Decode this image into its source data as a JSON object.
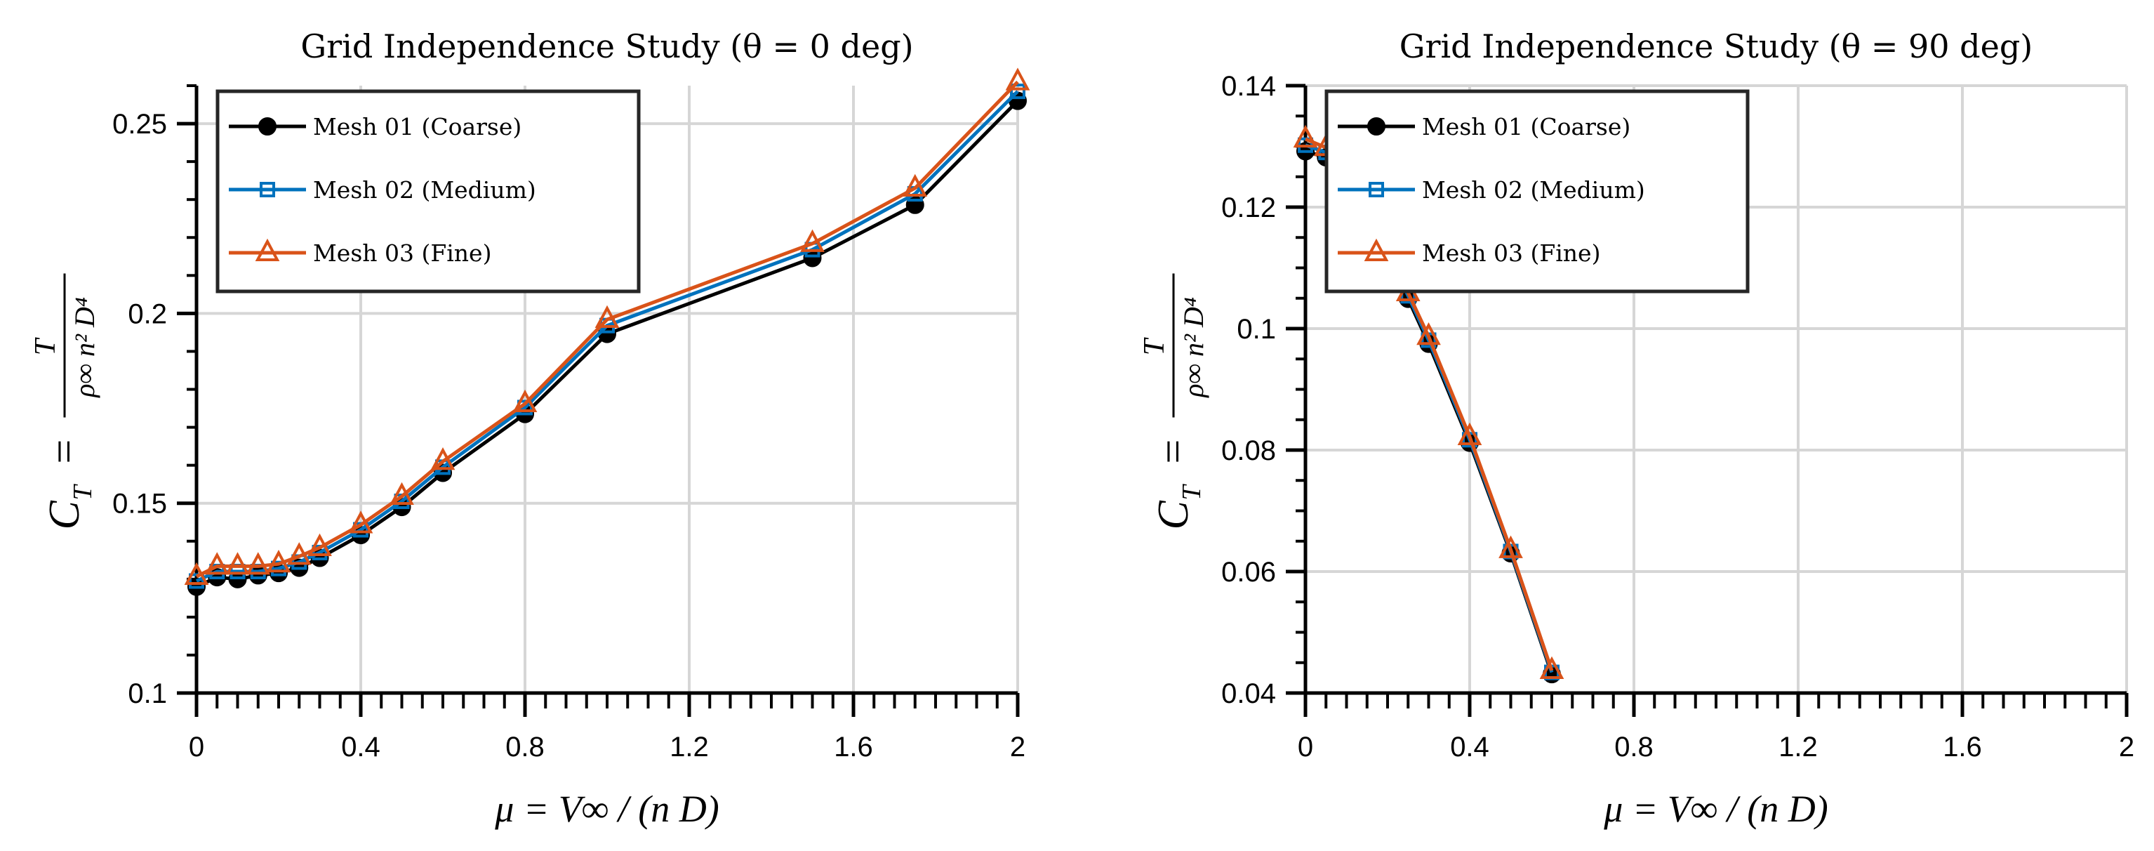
{
  "chart_data": [
    {
      "type": "line",
      "title": "Grid Independence Study (θ = 0 deg)",
      "xlabel": "μ = V∞ / (n D)",
      "ylabel": "C_T = T / (ρ∞ n² D⁴)",
      "xlabel_parts": {
        "lhs": "μ =",
        "num": "V∞",
        "den": "n D"
      },
      "ylabel_parts": {
        "lhs": "C",
        "sub": "T",
        "eq": "=",
        "num": "T",
        "den": "ρ∞ n² D⁴"
      },
      "xlim": [
        0,
        2
      ],
      "ylim": [
        0.1,
        0.26
      ],
      "xticks": [
        0,
        0.4,
        0.8,
        1.2,
        1.6,
        2
      ],
      "xtick_labels": [
        "0",
        "0.4",
        "0.8",
        "1.2",
        "1.6",
        "2"
      ],
      "yticks": [
        0.1,
        0.15,
        0.2,
        0.25
      ],
      "ytick_labels": [
        "0.1",
        "0.15",
        "0.2",
        "0.25"
      ],
      "xminor": 0.05,
      "yminor": 0.01,
      "grid": true,
      "legend_position": "top-left",
      "x": [
        0,
        0.05,
        0.1,
        0.15,
        0.2,
        0.25,
        0.3,
        0.4,
        0.5,
        0.6,
        0.8,
        1.0,
        1.5,
        1.75,
        2.0
      ],
      "series": [
        {
          "name": "Mesh 01 (Coarse)",
          "color": "#000000",
          "marker": "circle",
          "values": [
            0.128,
            0.1305,
            0.13,
            0.131,
            0.1316,
            0.133,
            0.1356,
            0.1416,
            0.149,
            0.158,
            0.1735,
            0.1946,
            0.2146,
            0.2286,
            0.256
          ]
        },
        {
          "name": "Mesh 02 (Medium)",
          "color": "#0072BD",
          "marker": "square",
          "values": [
            0.1295,
            0.132,
            0.132,
            0.132,
            0.1328,
            0.1345,
            0.137,
            0.143,
            0.1505,
            0.1595,
            0.1752,
            0.1968,
            0.2168,
            0.2315,
            0.2585
          ]
        },
        {
          "name": "Mesh 03 (Fine)",
          "color": "#D95319",
          "marker": "triangle",
          "values": [
            0.1307,
            0.1334,
            0.1334,
            0.1334,
            0.134,
            0.136,
            0.1383,
            0.1443,
            0.1518,
            0.161,
            0.1762,
            0.1984,
            0.2184,
            0.233,
            0.261
          ]
        }
      ]
    },
    {
      "type": "line",
      "title": "Grid Independence Study (θ = 90 deg)",
      "xlabel": "μ = V∞ / (n D)",
      "ylabel": "C_T = T / (ρ∞ n² D⁴)",
      "xlabel_parts": {
        "lhs": "μ =",
        "num": "V∞",
        "den": "n D"
      },
      "ylabel_parts": {
        "lhs": "C",
        "sub": "T",
        "eq": "=",
        "num": "T",
        "den": "ρ∞ n² D⁴"
      },
      "xlim": [
        0,
        2
      ],
      "ylim": [
        0.04,
        0.14
      ],
      "xticks": [
        0,
        0.4,
        0.8,
        1.2,
        1.6,
        2
      ],
      "xtick_labels": [
        "0",
        "0.4",
        "0.8",
        "1.2",
        "1.6",
        "2"
      ],
      "yticks": [
        0.04,
        0.06,
        0.08,
        0.1,
        0.12,
        0.14
      ],
      "ytick_labels": [
        "0.04",
        "0.06",
        "0.08",
        "0.1",
        "0.12",
        "0.14"
      ],
      "xminor": 0.05,
      "yminor": 0.005,
      "grid": true,
      "legend_position": "top-left",
      "x": [
        0,
        0.05,
        0.1,
        0.15,
        0.2,
        0.25,
        0.3,
        0.4,
        0.5,
        0.6
      ],
      "series": [
        {
          "name": "Mesh 01 (Coarse)",
          "color": "#000000",
          "marker": "circle",
          "values": [
            0.1292,
            0.1282,
            0.124,
            0.118,
            0.1116,
            0.1049,
            0.0975,
            0.0812,
            0.063,
            0.0431
          ]
        },
        {
          "name": "Mesh 02 (Medium)",
          "color": "#0072BD",
          "marker": "square",
          "values": [
            0.1302,
            0.129,
            0.1248,
            0.1188,
            0.1123,
            0.1054,
            0.0981,
            0.0817,
            0.0633,
            0.0434
          ]
        },
        {
          "name": "Mesh 03 (Fine)",
          "color": "#D95319",
          "marker": "triangle",
          "values": [
            0.1312,
            0.1298,
            0.1256,
            0.1196,
            0.113,
            0.1059,
            0.0987,
            0.0822,
            0.0636,
            0.0437
          ]
        }
      ]
    }
  ]
}
